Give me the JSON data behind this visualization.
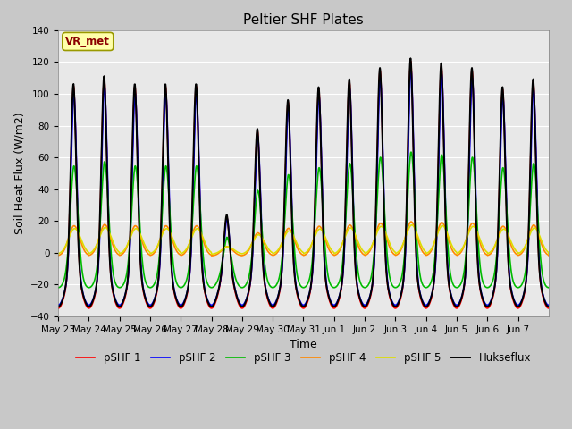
{
  "title": "Peltier SHF Plates",
  "xlabel": "Time",
  "ylabel": "Soil Heat Flux (W/m2)",
  "ylim": [
    -40,
    140
  ],
  "yticks": [
    -40,
    -20,
    0,
    20,
    40,
    60,
    80,
    100,
    120,
    140
  ],
  "bg_color": "#c8c8c8",
  "plot_bg_color": "#e8e8e8",
  "annotation": "VR_met",
  "annotation_color": "#8B0000",
  "annotation_bg": "#ffffaa",
  "annotation_edge": "#999900",
  "series": [
    {
      "label": "pSHF 1",
      "color": "#ff0000",
      "lw": 1.2
    },
    {
      "label": "pSHF 2",
      "color": "#0000ff",
      "lw": 1.2
    },
    {
      "label": "pSHF 3",
      "color": "#00bb00",
      "lw": 1.2
    },
    {
      "label": "pSHF 4",
      "color": "#ff8800",
      "lw": 1.2
    },
    {
      "label": "pSHF 5",
      "color": "#dddd00",
      "lw": 1.2
    },
    {
      "label": "Hukseflux",
      "color": "#000000",
      "lw": 1.4
    }
  ],
  "xtick_labels": [
    "May 23",
    "May 24",
    "May 25",
    "May 26",
    "May 27",
    "May 28",
    "May 29",
    "May 30",
    "May 31",
    "Jun 1",
    "Jun 2",
    "Jun 3",
    "Jun 4",
    "Jun 5",
    "Jun 6",
    "Jun 7"
  ],
  "n_days": 16,
  "pts_per_day": 96,
  "amplitudes": [
    112,
    117,
    112,
    112,
    112,
    30,
    84,
    102,
    110,
    115,
    122,
    128,
    125,
    122,
    110,
    115
  ]
}
